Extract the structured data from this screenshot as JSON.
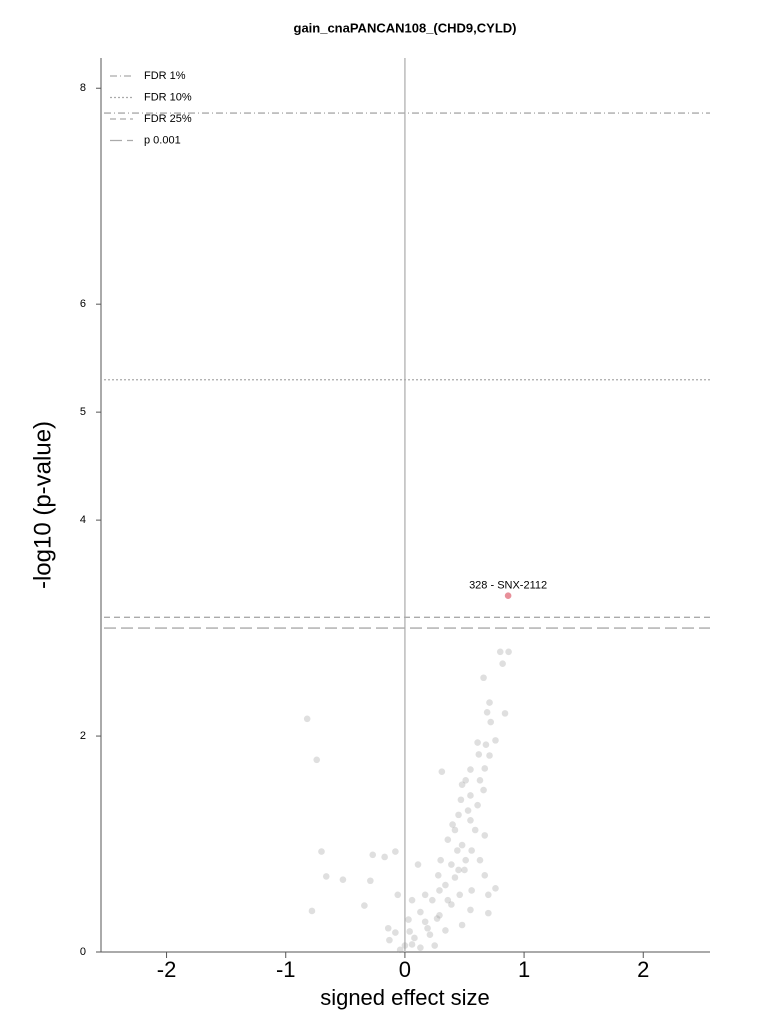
{
  "chart_data": {
    "type": "scatter",
    "title": "gain_cnaPANCAN108_(CHD9,CYLD)",
    "xlabel": "signed effect size",
    "ylabel": "-log10 (p-value)",
    "xlim": [
      -2.55,
      2.56
    ],
    "ylim": [
      0,
      8.28
    ],
    "xticks": [
      -2,
      -1,
      0,
      1,
      2
    ],
    "yticks": [
      0,
      2,
      4,
      5,
      6,
      8
    ],
    "vline": 0,
    "hlines": [
      {
        "label": "FDR 1%",
        "value": 7.77,
        "dash": "7,3,1,3"
      },
      {
        "label": "FDR 10%",
        "value": 5.3,
        "dash": "2,2"
      },
      {
        "label": "FDR 25%",
        "value": 3.1,
        "dash": "6,4"
      },
      {
        "label": "p 0.001",
        "value": 3.0,
        "dash": "12,5"
      }
    ],
    "points": {
      "color": "#969696",
      "x": [
        -0.82,
        -0.74,
        -0.7,
        -0.66,
        -0.52,
        -0.78,
        -0.27,
        -0.29,
        -0.08,
        -0.17,
        -0.34,
        0.8,
        0.87,
        0.82,
        0.66,
        0.71,
        0.69,
        0.84,
        0.72,
        0.61,
        0.62,
        0.31,
        0.51,
        0.67,
        0.55,
        0.47,
        0.66,
        0.45,
        0.55,
        0.42,
        0.67,
        0.36,
        0.44,
        0.3,
        0.39,
        0.5,
        0.28,
        0.76,
        0.67,
        0.34,
        0.46,
        0.23,
        0.39,
        0.55,
        0.7,
        0.13,
        0.29,
        0.17,
        0.06,
        0.11,
        -0.06,
        0.03,
        -0.08,
        -0.13,
        0.0,
        0.08,
        0.21,
        0.34,
        0.13,
        -0.04,
        0.25,
        0.48,
        0.56,
        0.63,
        0.59,
        0.53,
        0.48,
        0.71,
        0.76,
        0.29,
        0.42,
        0.17,
        0.04,
        -0.14,
        0.06,
        0.19,
        0.27,
        0.36,
        0.45,
        0.48,
        0.56,
        0.61,
        0.63,
        0.55,
        0.68,
        0.4,
        0.51,
        0.7
      ],
      "y": [
        2.16,
        1.78,
        0.93,
        0.7,
        0.67,
        0.38,
        0.9,
        0.66,
        0.93,
        0.88,
        0.43,
        2.78,
        2.78,
        2.67,
        2.54,
        2.31,
        2.22,
        2.21,
        2.13,
        1.94,
        1.83,
        1.67,
        1.59,
        1.7,
        1.45,
        1.41,
        1.5,
        1.27,
        1.22,
        1.13,
        1.08,
        1.04,
        0.94,
        0.85,
        0.81,
        0.76,
        0.71,
        0.59,
        0.71,
        0.62,
        0.53,
        0.48,
        0.44,
        0.39,
        0.36,
        0.37,
        0.34,
        0.28,
        0.48,
        0.81,
        0.53,
        0.3,
        0.18,
        0.11,
        0.06,
        0.13,
        0.16,
        0.2,
        0.04,
        0.02,
        0.06,
        0.25,
        0.57,
        0.85,
        1.13,
        1.31,
        1.55,
        1.82,
        1.96,
        0.57,
        0.69,
        0.53,
        0.19,
        0.22,
        0.07,
        0.22,
        0.31,
        0.48,
        0.76,
        0.99,
        0.94,
        1.36,
        1.59,
        1.69,
        1.92,
        1.18,
        0.85,
        0.53
      ]
    },
    "highlight": {
      "x": 0.866,
      "y": 3.3,
      "label": "328 - SNX-2112",
      "color": "#e8909a"
    }
  }
}
